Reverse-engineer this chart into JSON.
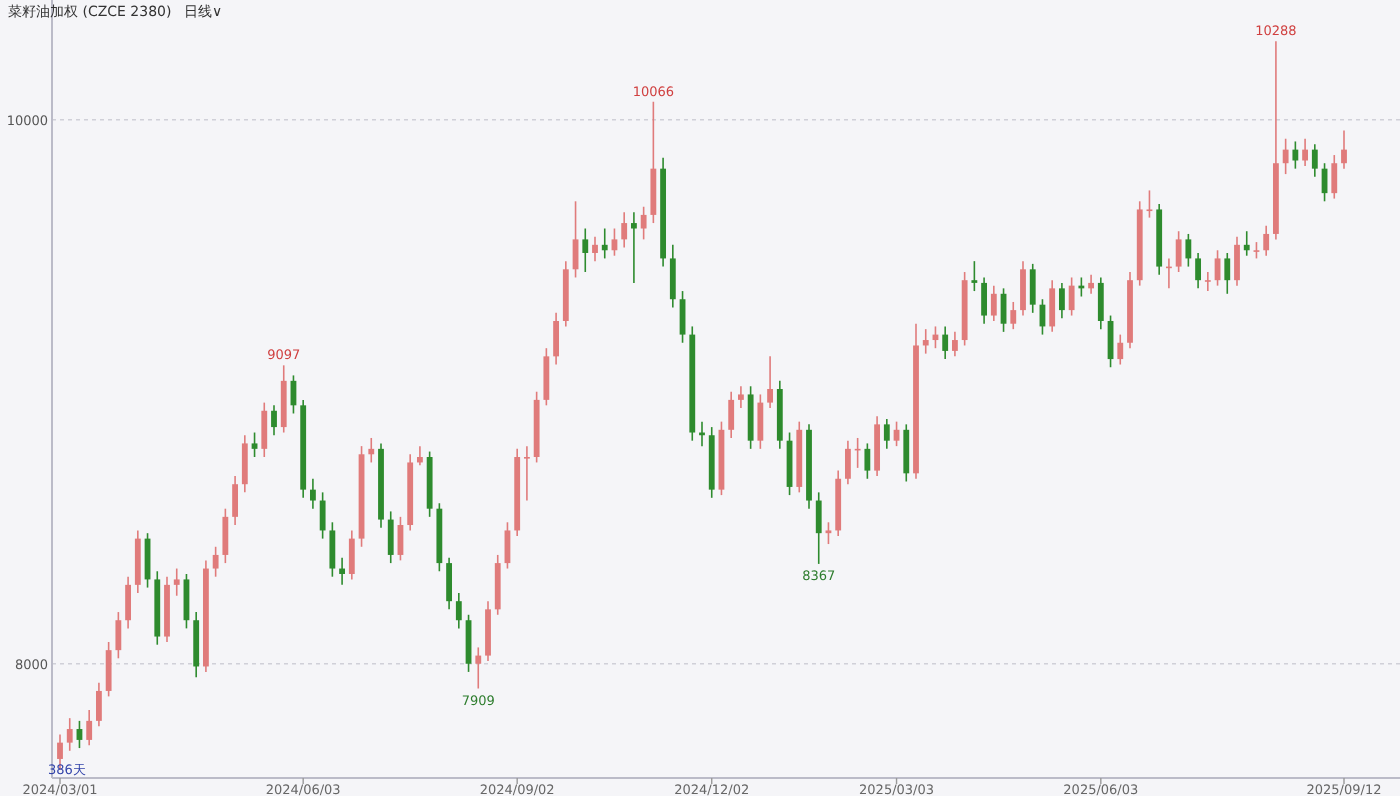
{
  "chart_data": {
    "type": "candlestick",
    "title": "菜籽油加权 (CZCE 2380)",
    "subtitle": "日线∨",
    "categories": [
      "2024/03/01",
      null,
      null,
      null,
      null,
      null,
      null,
      null,
      null,
      null,
      null,
      null,
      null,
      null,
      null,
      null,
      null,
      null,
      null,
      null,
      null,
      null,
      null,
      null,
      null,
      "2024/06/03",
      null,
      null,
      null,
      null,
      null,
      null,
      null,
      null,
      null,
      null,
      null,
      null,
      null,
      null,
      null,
      null,
      null,
      null,
      null,
      null,
      null,
      "2024/09/02",
      null,
      null,
      null,
      null,
      null,
      null,
      null,
      null,
      null,
      null,
      null,
      null,
      null,
      null,
      null,
      null,
      null,
      null,
      null,
      "2024/12/02",
      null,
      null,
      null,
      null,
      null,
      null,
      null,
      null,
      null,
      null,
      null,
      null,
      null,
      null,
      null,
      null,
      null,
      null,
      "2025/03/03",
      null,
      null,
      null,
      null,
      null,
      null,
      null,
      null,
      null,
      null,
      null,
      null,
      null,
      null,
      null,
      null,
      null,
      null,
      null,
      null,
      "2025/06/03",
      null,
      null,
      null,
      null,
      null,
      null,
      null,
      null,
      null,
      null,
      null,
      null,
      null,
      null,
      null,
      null,
      null,
      null,
      null,
      null,
      null,
      null,
      null,
      null,
      "2025/09/12"
    ],
    "ohlc": [
      [
        7650,
        7740,
        7610,
        7710
      ],
      [
        7710,
        7800,
        7680,
        7760
      ],
      [
        7760,
        7790,
        7690,
        7720
      ],
      [
        7720,
        7830,
        7700,
        7790
      ],
      [
        7790,
        7930,
        7770,
        7900
      ],
      [
        7900,
        8080,
        7880,
        8050
      ],
      [
        8050,
        8190,
        8020,
        8160
      ],
      [
        8160,
        8320,
        8130,
        8290
      ],
      [
        8290,
        8490,
        8260,
        8460
      ],
      [
        8460,
        8480,
        8280,
        8310
      ],
      [
        8310,
        8340,
        8070,
        8100
      ],
      [
        8100,
        8320,
        8080,
        8290
      ],
      [
        8290,
        8350,
        8250,
        8310
      ],
      [
        8310,
        8330,
        8130,
        8160
      ],
      [
        8160,
        8190,
        7950,
        7990
      ],
      [
        7990,
        8380,
        7970,
        8350
      ],
      [
        8350,
        8430,
        8320,
        8400
      ],
      [
        8400,
        8570,
        8370,
        8540
      ],
      [
        8540,
        8690,
        8510,
        8660
      ],
      [
        8660,
        8840,
        8630,
        8810
      ],
      [
        8810,
        8850,
        8760,
        8790
      ],
      [
        8790,
        8960,
        8760,
        8930
      ],
      [
        8930,
        8950,
        8840,
        8870
      ],
      [
        8870,
        9097,
        8850,
        9040
      ],
      [
        9040,
        9060,
        8920,
        8950
      ],
      [
        8950,
        8970,
        8610,
        8640
      ],
      [
        8640,
        8680,
        8570,
        8600
      ],
      [
        8600,
        8630,
        8460,
        8490
      ],
      [
        8490,
        8520,
        8320,
        8350
      ],
      [
        8350,
        8390,
        8290,
        8330
      ],
      [
        8330,
        8490,
        8310,
        8460
      ],
      [
        8460,
        8800,
        8430,
        8770
      ],
      [
        8770,
        8830,
        8740,
        8790
      ],
      [
        8790,
        8810,
        8500,
        8530
      ],
      [
        8530,
        8560,
        8370,
        8400
      ],
      [
        8400,
        8540,
        8380,
        8510
      ],
      [
        8510,
        8770,
        8490,
        8740
      ],
      [
        8740,
        8800,
        8730,
        8760
      ],
      [
        8760,
        8780,
        8540,
        8570
      ],
      [
        8570,
        8590,
        8340,
        8370
      ],
      [
        8370,
        8390,
        8200,
        8230
      ],
      [
        8230,
        8260,
        8130,
        8160
      ],
      [
        8160,
        8180,
        7970,
        8000
      ],
      [
        8000,
        8060,
        7909,
        8030
      ],
      [
        8030,
        8230,
        8010,
        8200
      ],
      [
        8200,
        8400,
        8180,
        8370
      ],
      [
        8370,
        8520,
        8350,
        8490
      ],
      [
        8490,
        8790,
        8470,
        8760
      ],
      [
        8760,
        8800,
        8600,
        8760
      ],
      [
        8760,
        9000,
        8740,
        8970
      ],
      [
        8970,
        9160,
        8950,
        9130
      ],
      [
        9130,
        9290,
        9100,
        9260
      ],
      [
        9260,
        9480,
        9240,
        9450
      ],
      [
        9450,
        9700,
        9420,
        9560
      ],
      [
        9560,
        9600,
        9440,
        9510
      ],
      [
        9510,
        9570,
        9480,
        9540
      ],
      [
        9540,
        9600,
        9490,
        9520
      ],
      [
        9520,
        9600,
        9500,
        9560
      ],
      [
        9560,
        9660,
        9530,
        9620
      ],
      [
        9620,
        9660,
        9400,
        9600
      ],
      [
        9600,
        9680,
        9560,
        9650
      ],
      [
        9650,
        10066,
        9620,
        9820
      ],
      [
        9820,
        9860,
        9460,
        9490
      ],
      [
        9490,
        9540,
        9310,
        9340
      ],
      [
        9340,
        9370,
        9180,
        9210
      ],
      [
        9210,
        9240,
        8820,
        8850
      ],
      [
        8850,
        8890,
        8800,
        8840
      ],
      [
        8840,
        8870,
        8610,
        8640
      ],
      [
        8640,
        8890,
        8620,
        8860
      ],
      [
        8860,
        9000,
        8830,
        8970
      ],
      [
        8970,
        9020,
        8940,
        8990
      ],
      [
        8990,
        9020,
        8790,
        8820
      ],
      [
        8820,
        8990,
        8790,
        8960
      ],
      [
        8960,
        9130,
        8940,
        9010
      ],
      [
        9010,
        9040,
        8790,
        8820
      ],
      [
        8820,
        8850,
        8620,
        8650
      ],
      [
        8650,
        8890,
        8630,
        8860
      ],
      [
        8860,
        8880,
        8570,
        8600
      ],
      [
        8600,
        8630,
        8367,
        8480
      ],
      [
        8480,
        8520,
        8440,
        8490
      ],
      [
        8490,
        8710,
        8470,
        8680
      ],
      [
        8680,
        8820,
        8660,
        8790
      ],
      [
        8790,
        8830,
        8720,
        8790
      ],
      [
        8790,
        8810,
        8680,
        8710
      ],
      [
        8710,
        8910,
        8690,
        8880
      ],
      [
        8880,
        8900,
        8790,
        8820
      ],
      [
        8820,
        8890,
        8800,
        8860
      ],
      [
        8860,
        8880,
        8670,
        8700
      ],
      [
        8700,
        9250,
        8680,
        9170
      ],
      [
        9170,
        9230,
        9140,
        9190
      ],
      [
        9190,
        9240,
        9160,
        9210
      ],
      [
        9210,
        9240,
        9120,
        9150
      ],
      [
        9150,
        9220,
        9130,
        9190
      ],
      [
        9190,
        9440,
        9170,
        9410
      ],
      [
        9410,
        9480,
        9370,
        9400
      ],
      [
        9400,
        9420,
        9250,
        9280
      ],
      [
        9280,
        9390,
        9260,
        9360
      ],
      [
        9360,
        9380,
        9220,
        9250
      ],
      [
        9250,
        9330,
        9230,
        9300
      ],
      [
        9300,
        9480,
        9280,
        9450
      ],
      [
        9450,
        9470,
        9290,
        9320
      ],
      [
        9320,
        9340,
        9210,
        9240
      ],
      [
        9240,
        9410,
        9220,
        9380
      ],
      [
        9380,
        9400,
        9270,
        9300
      ],
      [
        9300,
        9420,
        9280,
        9390
      ],
      [
        9390,
        9420,
        9350,
        9380
      ],
      [
        9380,
        9430,
        9360,
        9400
      ],
      [
        9400,
        9420,
        9230,
        9260
      ],
      [
        9260,
        9280,
        9090,
        9120
      ],
      [
        9120,
        9210,
        9100,
        9180
      ],
      [
        9180,
        9440,
        9160,
        9410
      ],
      [
        9410,
        9700,
        9390,
        9670
      ],
      [
        9670,
        9740,
        9640,
        9670
      ],
      [
        9670,
        9690,
        9430,
        9460
      ],
      [
        9460,
        9490,
        9380,
        9460
      ],
      [
        9460,
        9590,
        9440,
        9560
      ],
      [
        9560,
        9580,
        9460,
        9490
      ],
      [
        9490,
        9510,
        9380,
        9410
      ],
      [
        9410,
        9440,
        9370,
        9410
      ],
      [
        9410,
        9520,
        9390,
        9490
      ],
      [
        9490,
        9510,
        9360,
        9410
      ],
      [
        9410,
        9570,
        9390,
        9540
      ],
      [
        9540,
        9590,
        9500,
        9520
      ],
      [
        9520,
        9550,
        9490,
        9520
      ],
      [
        9520,
        9610,
        9500,
        9580
      ],
      [
        9580,
        10288,
        9560,
        9840
      ],
      [
        9840,
        9930,
        9800,
        9890
      ],
      [
        9890,
        9920,
        9820,
        9850
      ],
      [
        9850,
        9930,
        9830,
        9890
      ],
      [
        9890,
        9910,
        9790,
        9820
      ],
      [
        9820,
        9840,
        9700,
        9730
      ],
      [
        9730,
        9870,
        9710,
        9840
      ],
      [
        9840,
        9960,
        9820,
        9890
      ]
    ],
    "colors": [
      "#e07b7b",
      "#e07b7b",
      "#2e8b2e",
      "#e07b7b",
      "#e07b7b",
      "#e07b7b",
      "#e07b7b",
      "#e07b7b",
      "#e07b7b",
      "#2e8b2e",
      "#2e8b2e",
      "#e07b7b",
      "#e07b7b",
      "#2e8b2e",
      "#2e8b2e",
      "#e07b7b",
      "#e07b7b",
      "#e07b7b",
      "#e07b7b",
      "#e07b7b",
      "#2e8b2e",
      "#e07b7b",
      "#2e8b2e",
      "#e07b7b",
      "#2e8b2e",
      "#2e8b2e",
      "#2e8b2e",
      "#2e8b2e",
      "#2e8b2e",
      "#2e8b2e",
      "#e07b7b",
      "#e07b7b",
      "#e07b7b",
      "#2e8b2e",
      "#2e8b2e",
      "#e07b7b",
      "#e07b7b",
      "#e07b7b",
      "#2e8b2e",
      "#2e8b2e",
      "#2e8b2e",
      "#2e8b2e",
      "#2e8b2e",
      "#e07b7b",
      "#e07b7b",
      "#e07b7b",
      "#e07b7b",
      "#e07b7b",
      "#e07b7b",
      "#e07b7b",
      "#e07b7b",
      "#e07b7b",
      "#e07b7b",
      "#e07b7b",
      "#2e8b2e",
      "#e07b7b",
      "#2e8b2e",
      "#e07b7b",
      "#e07b7b",
      "#2e8b2e",
      "#e07b7b",
      "#e07b7b",
      "#2e8b2e",
      "#2e8b2e",
      "#2e8b2e",
      "#2e8b2e",
      "#2e8b2e",
      "#2e8b2e",
      "#e07b7b",
      "#e07b7b",
      "#e07b7b",
      "#2e8b2e",
      "#e07b7b",
      "#e07b7b",
      "#2e8b2e",
      "#2e8b2e",
      "#e07b7b",
      "#2e8b2e",
      "#2e8b2e",
      "#e07b7b",
      "#e07b7b",
      "#e07b7b",
      "#e07b7b",
      "#2e8b2e",
      "#e07b7b",
      "#2e8b2e",
      "#e07b7b",
      "#2e8b2e",
      "#e07b7b",
      "#e07b7b",
      "#e07b7b",
      "#2e8b2e",
      "#e07b7b",
      "#e07b7b",
      "#2e8b2e",
      "#2e8b2e",
      "#e07b7b",
      "#2e8b2e",
      "#e07b7b",
      "#e07b7b",
      "#2e8b2e",
      "#2e8b2e",
      "#e07b7b",
      "#2e8b2e",
      "#e07b7b",
      "#2e8b2e",
      "#e07b7b",
      "#2e8b2e",
      "#2e8b2e",
      "#e07b7b",
      "#e07b7b",
      "#e07b7b",
      "#e07b7b",
      "#2e8b2e",
      "#e07b7b",
      "#e07b7b",
      "#2e8b2e",
      "#2e8b2e",
      "#e07b7b",
      "#e07b7b",
      "#2e8b2e",
      "#e07b7b",
      "#2e8b2e",
      "#e07b7b",
      "#e07b7b",
      "#e07b7b",
      "#e07b7b",
      "#2e8b2e",
      "#e07b7b",
      "#2e8b2e",
      "#2e8b2e",
      "#e07b7b",
      "#e07b7b"
    ],
    "ylim": [
      7580,
      10440
    ],
    "yticks": [
      8000,
      10000
    ],
    "grid": "y",
    "annotations": [
      {
        "text": "10288",
        "y": 10288
      },
      {
        "text": "10066",
        "y": 10066
      },
      {
        "text": "9097",
        "y": 9097
      },
      {
        "text": "7909",
        "y": 7909
      },
      {
        "text": "8367",
        "y": 8367
      },
      "386天"
    ]
  }
}
